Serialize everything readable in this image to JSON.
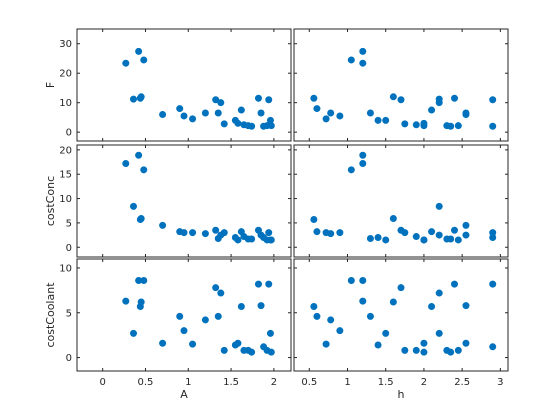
{
  "chart_data": {
    "type": "scatter",
    "title": "",
    "marker_color": "#0072bd",
    "grid": false,
    "legend": "none",
    "layout": "scatter matrix, 3 rows x 2 columns",
    "columns": [
      {
        "xlabel": "A",
        "xlim": [
          -0.3,
          2.2
        ],
        "xticks": [
          "0",
          "0.5",
          "1",
          "1.5",
          "2"
        ]
      },
      {
        "xlabel": "h",
        "xlim": [
          0.3,
          3.1
        ],
        "xticks": [
          "0.5",
          "1",
          "1.5",
          "2",
          "2.5",
          "3"
        ]
      }
    ],
    "rows": [
      {
        "ylabel": "F",
        "ylim": [
          -3,
          35
        ],
        "yticks": [
          "0",
          "10",
          "20",
          "30"
        ]
      },
      {
        "ylabel": "costConc",
        "ylim": [
          -2,
          21
        ],
        "yticks": [
          "0",
          "5",
          "10",
          "15",
          "20"
        ]
      },
      {
        "ylabel": "costCoolant",
        "ylim": [
          -1.5,
          11
        ],
        "yticks": [
          "0",
          "5",
          "10"
        ]
      }
    ],
    "observations": [
      {
        "A": 0.27,
        "h": 1.2,
        "F": 23.4,
        "costConc": 17.2,
        "costCoolant": 6.3
      },
      {
        "A": 0.42,
        "h": 1.2,
        "F": 27.4,
        "costConc": 18.9,
        "costCoolant": 8.6
      },
      {
        "A": 0.48,
        "h": 1.05,
        "F": 24.5,
        "costConc": 15.9,
        "costCoolant": 8.6
      },
      {
        "A": 0.36,
        "h": 2.2,
        "F": 11.2,
        "costConc": 8.4,
        "costCoolant": 2.7
      },
      {
        "A": 0.45,
        "h": 1.6,
        "F": 12.0,
        "costConc": 5.9,
        "costCoolant": 6.2
      },
      {
        "A": 0.44,
        "h": 0.56,
        "F": 11.5,
        "costConc": 5.7,
        "costCoolant": 5.7
      },
      {
        "A": 0.7,
        "h": 2.55,
        "F": 6.0,
        "costConc": 4.5,
        "costCoolant": 1.6
      },
      {
        "A": 0.9,
        "h": 0.6,
        "F": 8.0,
        "costConc": 3.2,
        "costCoolant": 4.6
      },
      {
        "A": 0.95,
        "h": 0.9,
        "F": 5.5,
        "costConc": 3.0,
        "costCoolant": 3.0
      },
      {
        "A": 1.05,
        "h": 0.72,
        "F": 4.5,
        "costConc": 3.0,
        "costCoolant": 1.5
      },
      {
        "A": 1.2,
        "h": 0.78,
        "F": 6.5,
        "costConc": 2.8,
        "costCoolant": 4.2
      },
      {
        "A": 1.32,
        "h": 1.7,
        "F": 11.0,
        "costConc": 3.5,
        "costCoolant": 7.8
      },
      {
        "A": 1.38,
        "h": 2.2,
        "F": 10.0,
        "costConc": 2.5,
        "costCoolant": 7.2
      },
      {
        "A": 1.42,
        "h": 1.75,
        "F": 2.8,
        "costConc": 3.0,
        "costCoolant": 0.8
      },
      {
        "A": 1.35,
        "h": 1.3,
        "F": 6.5,
        "costConc": 1.8,
        "costCoolant": 4.6
      },
      {
        "A": 1.55,
        "h": 1.4,
        "F": 4.0,
        "costConc": 2.0,
        "costCoolant": 1.4
      },
      {
        "A": 1.58,
        "h": 2.0,
        "F": 3.0,
        "costConc": 1.5,
        "costCoolant": 1.6
      },
      {
        "A": 1.62,
        "h": 2.1,
        "F": 7.5,
        "costConc": 3.2,
        "costCoolant": 5.7
      },
      {
        "A": 1.65,
        "h": 1.9,
        "F": 2.5,
        "costConc": 2.2,
        "costCoolant": 0.8
      },
      {
        "A": 1.7,
        "h": 2.3,
        "F": 2.2,
        "costConc": 1.7,
        "costCoolant": 0.8
      },
      {
        "A": 1.74,
        "h": 2.35,
        "F": 2.0,
        "costConc": 1.7,
        "costCoolant": 0.6
      },
      {
        "A": 1.82,
        "h": 2.4,
        "F": 11.5,
        "costConc": 3.5,
        "costCoolant": 8.2
      },
      {
        "A": 1.85,
        "h": 2.55,
        "F": 6.5,
        "costConc": 2.5,
        "costCoolant": 5.8
      },
      {
        "A": 1.88,
        "h": 2.9,
        "F": 2.0,
        "costConc": 2.0,
        "costCoolant": 1.2
      },
      {
        "A": 1.92,
        "h": 2.45,
        "F": 2.2,
        "costConc": 1.5,
        "costCoolant": 0.8
      },
      {
        "A": 1.94,
        "h": 2.9,
        "F": 11.0,
        "costConc": 3.0,
        "costCoolant": 8.2
      },
      {
        "A": 1.96,
        "h": 1.5,
        "F": 4.0,
        "costConc": 1.5,
        "costCoolant": 2.7
      },
      {
        "A": 1.97,
        "h": 2.0,
        "F": 2.2,
        "costConc": 1.5,
        "costCoolant": 0.6
      }
    ]
  }
}
